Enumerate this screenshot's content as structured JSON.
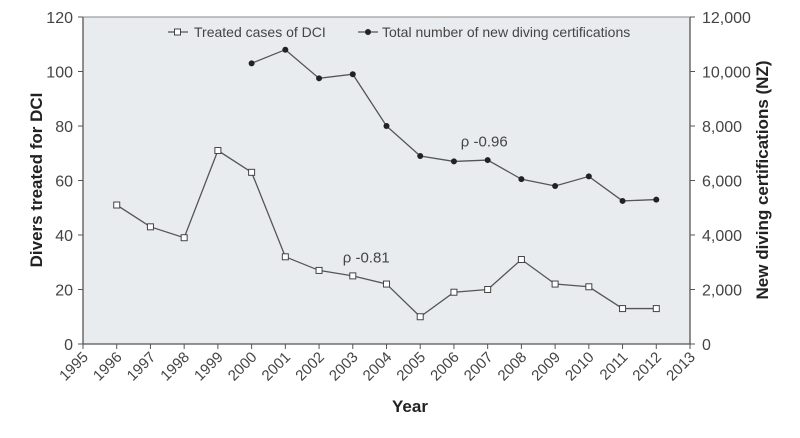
{
  "chart_data": {
    "type": "line",
    "title": "",
    "xlabel": "Year",
    "ylabel": "Divers treated for DCI",
    "y2label": "New diving certifications (NZ)",
    "xlim": [
      1995,
      2013
    ],
    "ylim": [
      0,
      120
    ],
    "y2lim": [
      0,
      12000
    ],
    "x_ticks": [
      "1995",
      "1996",
      "1997",
      "1998",
      "1999",
      "2000",
      "2001",
      "2002",
      "2003",
      "2004",
      "2005",
      "2006",
      "2007",
      "2008",
      "2009",
      "2010",
      "2011",
      "2012",
      "2013"
    ],
    "y_ticks": [
      "0",
      "20",
      "40",
      "60",
      "80",
      "100",
      "120"
    ],
    "y2_ticks": [
      "0",
      "2,000",
      "4,000",
      "6,000",
      "8,000",
      "10,000",
      "12,000"
    ],
    "grid": false,
    "legend_position": "top",
    "series": [
      {
        "name": "Treated cases of DCI",
        "axis": "left",
        "marker": "open-square",
        "x": [
          1996,
          1997,
          1998,
          1999,
          2000,
          2001,
          2002,
          2003,
          2004,
          2005,
          2006,
          2007,
          2008,
          2009,
          2010,
          2011,
          2012
        ],
        "values": [
          51,
          43,
          39,
          71,
          63,
          32,
          27,
          25,
          22,
          10,
          19,
          20,
          31,
          22,
          21,
          13,
          13
        ]
      },
      {
        "name": "Total number of new diving certifications",
        "axis": "right",
        "marker": "filled-circle",
        "x": [
          2000,
          2001,
          2002,
          2003,
          2004,
          2005,
          2006,
          2007,
          2008,
          2009,
          2010,
          2011,
          2012
        ],
        "values": [
          10300,
          10800,
          9750,
          9900,
          8000,
          6900,
          6700,
          6750,
          6050,
          5800,
          6150,
          5250,
          5300
        ]
      }
    ],
    "annotations": [
      {
        "text": "ρ -0.81",
        "x": 2003,
        "y": 30,
        "axis": "left"
      },
      {
        "text": "ρ -0.96",
        "x": 2006.5,
        "y": 7250,
        "axis": "right"
      }
    ],
    "colors": {
      "plot_bg": "#e9ecef",
      "line": "#555555",
      "marker_fill": "#222222"
    }
  }
}
